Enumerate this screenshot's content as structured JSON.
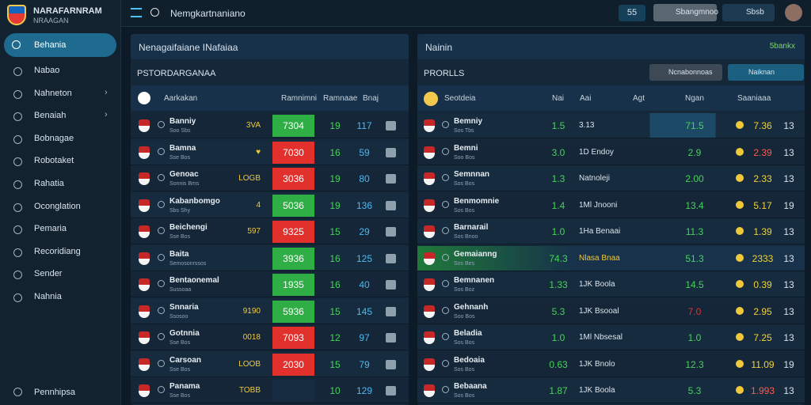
{
  "sidebar": {
    "brand": "NARAFARNRAM",
    "brand_sub": "NRAAGAN",
    "active": "Behania",
    "items": [
      "Nabao",
      "Nahneton",
      "Benaiah",
      "Bobnagae",
      "Robotaket",
      "Rahatia",
      "Oconglation",
      "Pemaria",
      "Recoridiang",
      "Sender",
      "Nahnia"
    ],
    "footer": "Pennhipsa"
  },
  "topbar": {
    "search": "Nemgkartnaniano",
    "badge": "55",
    "button": "Sbangmnoo",
    "user": "Sbsb"
  },
  "left_panel": {
    "title": "Nenagaifaiane INafaiaa",
    "subtitle": "PSTORDARGANAA",
    "columns": [
      "Aarkakan",
      "Ramnimni",
      "Ramnaae",
      "Bnaj"
    ],
    "rows": [
      {
        "name": "Banniy",
        "sub": "Soo Sbs",
        "tag": "3VA",
        "odds": "7304",
        "color": "#2fae45",
        "n1": "19",
        "n2": "117"
      },
      {
        "name": "Bamna",
        "sub": "Sse Bos",
        "tag": "♥",
        "odds": "7030",
        "color": "#e2302d",
        "n1": "16",
        "n2": "59"
      },
      {
        "name": "Genoac",
        "sub": "Sonnis Bms",
        "tag": "LOGB",
        "odds": "3036",
        "color": "#e2302d",
        "n1": "19",
        "n2": "80"
      },
      {
        "name": "Kabanbomgo",
        "sub": "Sbs Shy",
        "tag": "4",
        "odds": "5036",
        "color": "#2fae45",
        "n1": "19",
        "n2": "136"
      },
      {
        "name": "Beichengi",
        "sub": "Sse Bos",
        "tag": "597",
        "odds": "9325",
        "color": "#e2302d",
        "n1": "15",
        "n2": "29"
      },
      {
        "name": "Baita",
        "sub": "Semosonrssos",
        "tag": "",
        "odds": "3936",
        "color": "#2fae45",
        "n1": "16",
        "n2": "125"
      },
      {
        "name": "Bentaonemal",
        "sub": "Sussoaa",
        "tag": "",
        "odds": "1935",
        "color": "#2fae45",
        "n1": "16",
        "n2": "40"
      },
      {
        "name": "Snnaria",
        "sub": "Ssosoo",
        "tag": "9190",
        "odds": "5936",
        "color": "#2fae45",
        "n1": "15",
        "n2": "145"
      },
      {
        "name": "Gotnnia",
        "sub": "Sse Bos",
        "tag": "0018",
        "odds": "7093",
        "color": "#e2302d",
        "n1": "12",
        "n2": "97"
      },
      {
        "name": "Carsoan",
        "sub": "Sse Bos",
        "tag": "LOOB",
        "odds": "2030",
        "color": "#e2302d",
        "n1": "15",
        "n2": "79"
      },
      {
        "name": "Panama",
        "sub": "Sse Bos",
        "tag": "TOBB",
        "odds": "",
        "color": "#172c40",
        "n1": "10",
        "n2": "129"
      }
    ]
  },
  "right_panel": {
    "title": "Nainin",
    "title_right": "5bankx",
    "subtitle": "PRORLLS",
    "buttons": [
      "Ncnabonnoas",
      "Naiknan"
    ],
    "columns": [
      "Seotdeia",
      "Nai",
      "Aai",
      "Agt",
      "Ngan",
      "Saaniaaa"
    ],
    "rows": [
      {
        "name": "Bemniy",
        "sub": "Sos Tbs",
        "n1": "1.5",
        "text": "3.13",
        "val": "71.5",
        "val2": "7.36",
        "n3": "13"
      },
      {
        "name": "Bemni",
        "sub": "Soo Bos",
        "n1": "3.0",
        "text": "1D Endoy",
        "val": "2.9",
        "val2": "2.39",
        "n3": "13"
      },
      {
        "name": "Semnnan",
        "sub": "Sos Bos",
        "n1": "1.3",
        "text": "Natnoleji",
        "val": "2.00",
        "val2": "2.33",
        "n3": "13"
      },
      {
        "name": "Benmomnie",
        "sub": "Sos Bos",
        "n1": "1.4",
        "text": "1Ml Jnooni",
        "val": "13.4",
        "val2": "5.17",
        "n3": "19"
      },
      {
        "name": "Barnarail",
        "sub": "Sos Bnoo",
        "n1": "1.0",
        "text": "1Ha Benaai",
        "val": "11.3",
        "val2": "1.39",
        "n3": "13"
      },
      {
        "name": "Gemaianng",
        "sub": "Sos Bes",
        "n1": "74.3",
        "text": "Nlasa Bnaa",
        "val": "51.3",
        "val2": "2333",
        "n3": "13"
      },
      {
        "name": "Bemnanen",
        "sub": "Sos Boz",
        "n1": "1.33",
        "text": "1JK Boola",
        "val": "14.5",
        "val2": "0.39",
        "n3": "13"
      },
      {
        "name": "Gehnanh",
        "sub": "Soo Bos",
        "n1": "5.3",
        "text": "1JK Bsooal",
        "val": "7.0",
        "val2": "2.95",
        "n3": "13"
      },
      {
        "name": "Beladia",
        "sub": "Sos Bos",
        "n1": "1.0",
        "text": "1Ml Nbsesal",
        "val": "1.0",
        "val2": "7.25",
        "n3": "13"
      },
      {
        "name": "Bedoaia",
        "sub": "Sos Bos",
        "n1": "0.63",
        "text": "1JK Bnolo",
        "val": "12.3",
        "val2": "11.09",
        "n3": "19"
      },
      {
        "name": "Bebaana",
        "sub": "Sos Bos",
        "n1": "1.87",
        "text": "1JK Boola",
        "val": "5.3",
        "val2": "1.993",
        "n3": "13"
      }
    ]
  }
}
